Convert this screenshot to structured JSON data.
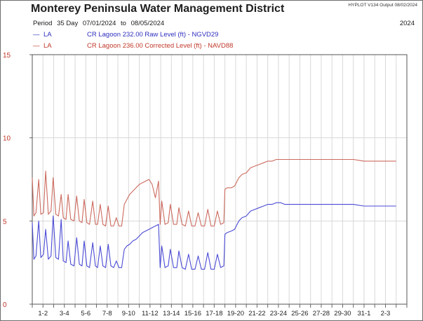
{
  "title": "Monterey Peninsula Water Management District",
  "stamp": "HYPLOT V134  Output 08/02/2024",
  "period": {
    "label": "Period",
    "days": "35 Day",
    "start": "07/01/2024",
    "to": "to",
    "end": "08/05/2024"
  },
  "year": "2024",
  "legend": [
    {
      "dash": "—",
      "code": "LA",
      "text": "CR Lagoon  232.00 Raw Level (ft) - NGVD29"
    },
    {
      "dash": "—",
      "code": "LA",
      "text": "CR Lagoon  236.00 Corrected Level (ft) - NAVD88"
    }
  ],
  "colors": {
    "raw": "#4b4bd6",
    "corrected": "#cc6a5e",
    "axis_labels": "#c0392b",
    "grid": "#d8d8d8",
    "plot_border": "#555555"
  },
  "chart_data": {
    "type": "line",
    "ylim": [
      0,
      15
    ],
    "yticks": [
      "0",
      "5",
      "10",
      "15"
    ],
    "xlim": [
      0,
      35
    ],
    "xticks": [
      "1-2",
      "3-4",
      "5-6",
      "7-8",
      "9-10",
      "11-12",
      "13-14",
      "15-16",
      "17-18",
      "19-20",
      "21-22",
      "23-24",
      "25-26",
      "27-28",
      "29-30",
      "31-1",
      "2-3"
    ],
    "grid": true,
    "series": [
      {
        "name": "CR Lagoon  232.00 Raw Level (ft) - NGVD29",
        "x": [
          0,
          0.15,
          0.35,
          0.6,
          0.8,
          1.05,
          1.25,
          1.5,
          1.75,
          1.95,
          2.2,
          2.45,
          2.7,
          2.9,
          3.15,
          3.35,
          3.6,
          3.9,
          4.15,
          4.4,
          4.65,
          4.85,
          5.1,
          5.35,
          5.65,
          5.9,
          6.1,
          6.35,
          6.6,
          6.85,
          7.1,
          7.35,
          7.6,
          7.85,
          8.1,
          8.35,
          8.6,
          8.85,
          9.1,
          9.4,
          9.7,
          10.0,
          10.3,
          10.6,
          10.9,
          11.2,
          11.5,
          11.8,
          11.95,
          12.1,
          12.4,
          12.7,
          12.9,
          13.2,
          13.5,
          13.7,
          14.0,
          14.3,
          14.6,
          14.9,
          15.2,
          15.5,
          15.8,
          16.1,
          16.4,
          16.7,
          17.0,
          17.3,
          17.6,
          17.9,
          18.0,
          18.2,
          18.6,
          18.9,
          19.3,
          19.6,
          20.0,
          20.4,
          20.8,
          21.2,
          21.6,
          22.0,
          22.4,
          22.8,
          23.2,
          23.6,
          24.2,
          25.0,
          26.0,
          27.0,
          28.0,
          29.0,
          30.0,
          31.0,
          32.0,
          33.0,
          34.0
        ],
        "y": [
          4.9,
          2.7,
          2.9,
          5.0,
          2.8,
          3.0,
          4.5,
          2.7,
          2.9,
          5.3,
          2.8,
          2.7,
          5.1,
          2.6,
          2.5,
          3.8,
          2.4,
          2.3,
          4.0,
          2.4,
          2.3,
          3.8,
          2.3,
          2.2,
          3.7,
          2.3,
          2.2,
          3.5,
          2.3,
          2.2,
          3.6,
          2.3,
          2.2,
          2.6,
          2.2,
          2.2,
          3.3,
          3.5,
          3.6,
          3.8,
          3.9,
          4.1,
          4.3,
          4.4,
          4.5,
          4.6,
          4.7,
          4.8,
          2.2,
          3.5,
          2.2,
          2.3,
          3.3,
          2.2,
          2.2,
          3.2,
          2.2,
          2.1,
          3.0,
          2.1,
          2.1,
          2.9,
          2.1,
          2.1,
          3.1,
          2.1,
          2.1,
          3.0,
          2.2,
          2.3,
          4.2,
          4.3,
          4.4,
          4.5,
          5.0,
          5.2,
          5.3,
          5.6,
          5.7,
          5.8,
          5.9,
          6.0,
          6.0,
          6.1,
          6.1,
          6.0,
          6.0,
          6.0,
          6.0,
          6.0,
          6.0,
          6.0,
          6.0,
          5.9,
          5.9,
          5.9,
          5.9
        ]
      },
      {
        "name": "CR Lagoon  236.00 Corrected Level (ft) - NAVD88",
        "x": [
          0,
          0.15,
          0.35,
          0.6,
          0.8,
          1.05,
          1.25,
          1.5,
          1.75,
          1.95,
          2.2,
          2.45,
          2.7,
          2.9,
          3.15,
          3.35,
          3.6,
          3.9,
          4.15,
          4.4,
          4.65,
          4.85,
          5.1,
          5.35,
          5.65,
          5.9,
          6.1,
          6.35,
          6.6,
          6.85,
          7.1,
          7.35,
          7.6,
          7.85,
          8.1,
          8.35,
          8.6,
          8.85,
          9.1,
          9.4,
          9.7,
          10.0,
          10.3,
          10.6,
          10.9,
          11.2,
          11.5,
          11.8,
          11.95,
          12.1,
          12.4,
          12.7,
          12.9,
          13.2,
          13.5,
          13.7,
          14.0,
          14.3,
          14.6,
          14.9,
          15.2,
          15.5,
          15.8,
          16.1,
          16.4,
          16.7,
          17.0,
          17.3,
          17.6,
          17.9,
          18.0,
          18.2,
          18.6,
          18.9,
          19.3,
          19.6,
          20.0,
          20.4,
          20.8,
          21.2,
          21.6,
          22.0,
          22.4,
          22.8,
          23.2,
          23.6,
          24.2,
          25.0,
          26.0,
          27.0,
          28.0,
          29.0,
          30.0,
          31.0,
          32.0,
          33.0,
          34.0
        ],
        "y": [
          7.6,
          5.3,
          5.5,
          7.5,
          5.4,
          5.5,
          8.0,
          5.4,
          5.6,
          7.6,
          5.4,
          5.3,
          6.6,
          5.2,
          5.1,
          6.6,
          5.1,
          5.0,
          6.5,
          5.0,
          4.9,
          6.3,
          4.9,
          4.8,
          6.2,
          4.8,
          4.8,
          6.0,
          4.8,
          4.7,
          5.9,
          4.7,
          4.7,
          5.2,
          4.7,
          4.7,
          6.0,
          6.3,
          6.6,
          6.8,
          7.0,
          7.2,
          7.3,
          7.4,
          7.5,
          7.2,
          6.4,
          7.4,
          4.8,
          6.2,
          4.8,
          4.9,
          6.0,
          4.8,
          4.8,
          5.8,
          4.8,
          4.7,
          5.6,
          4.7,
          4.7,
          5.5,
          4.7,
          4.7,
          5.7,
          4.7,
          4.7,
          5.6,
          4.8,
          4.9,
          6.9,
          7.0,
          7.0,
          7.1,
          7.6,
          7.8,
          7.9,
          8.2,
          8.3,
          8.4,
          8.5,
          8.6,
          8.6,
          8.7,
          8.7,
          8.7,
          8.7,
          8.7,
          8.7,
          8.7,
          8.7,
          8.7,
          8.7,
          8.6,
          8.6,
          8.6,
          8.6
        ]
      }
    ]
  }
}
